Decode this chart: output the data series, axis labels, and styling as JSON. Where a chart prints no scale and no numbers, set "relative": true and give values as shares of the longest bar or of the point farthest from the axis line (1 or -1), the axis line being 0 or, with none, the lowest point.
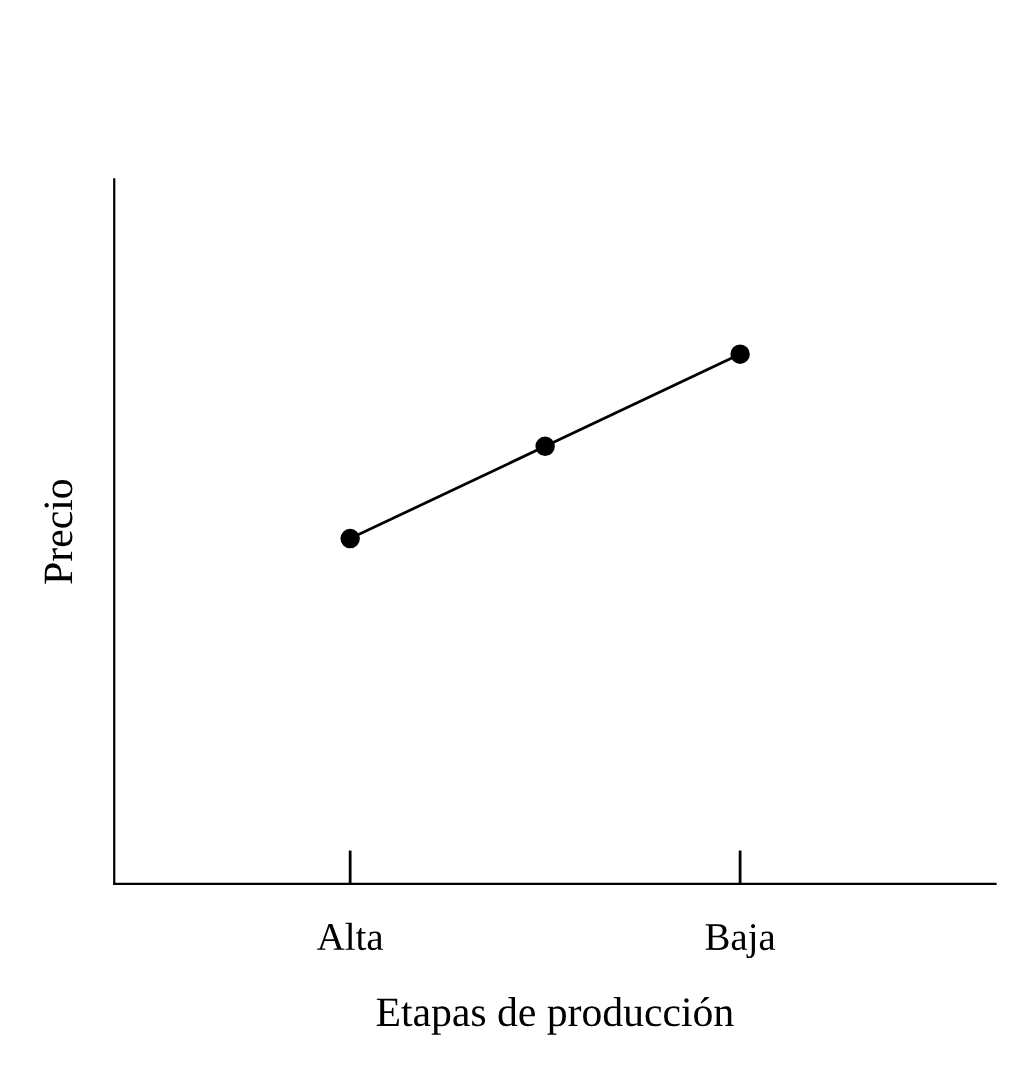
{
  "chart_data": {
    "type": "line",
    "relative": true,
    "xlabel": "Etapas de producción",
    "ylabel": "Precio",
    "categories": [
      "Alta",
      null,
      "Baja"
    ],
    "series": [
      {
        "color": "#000000",
        "values": [
          0.652,
          0.826,
          1
        ]
      }
    ],
    "marker": "circle",
    "line_style": "solid",
    "grid": false,
    "legend": false
  }
}
